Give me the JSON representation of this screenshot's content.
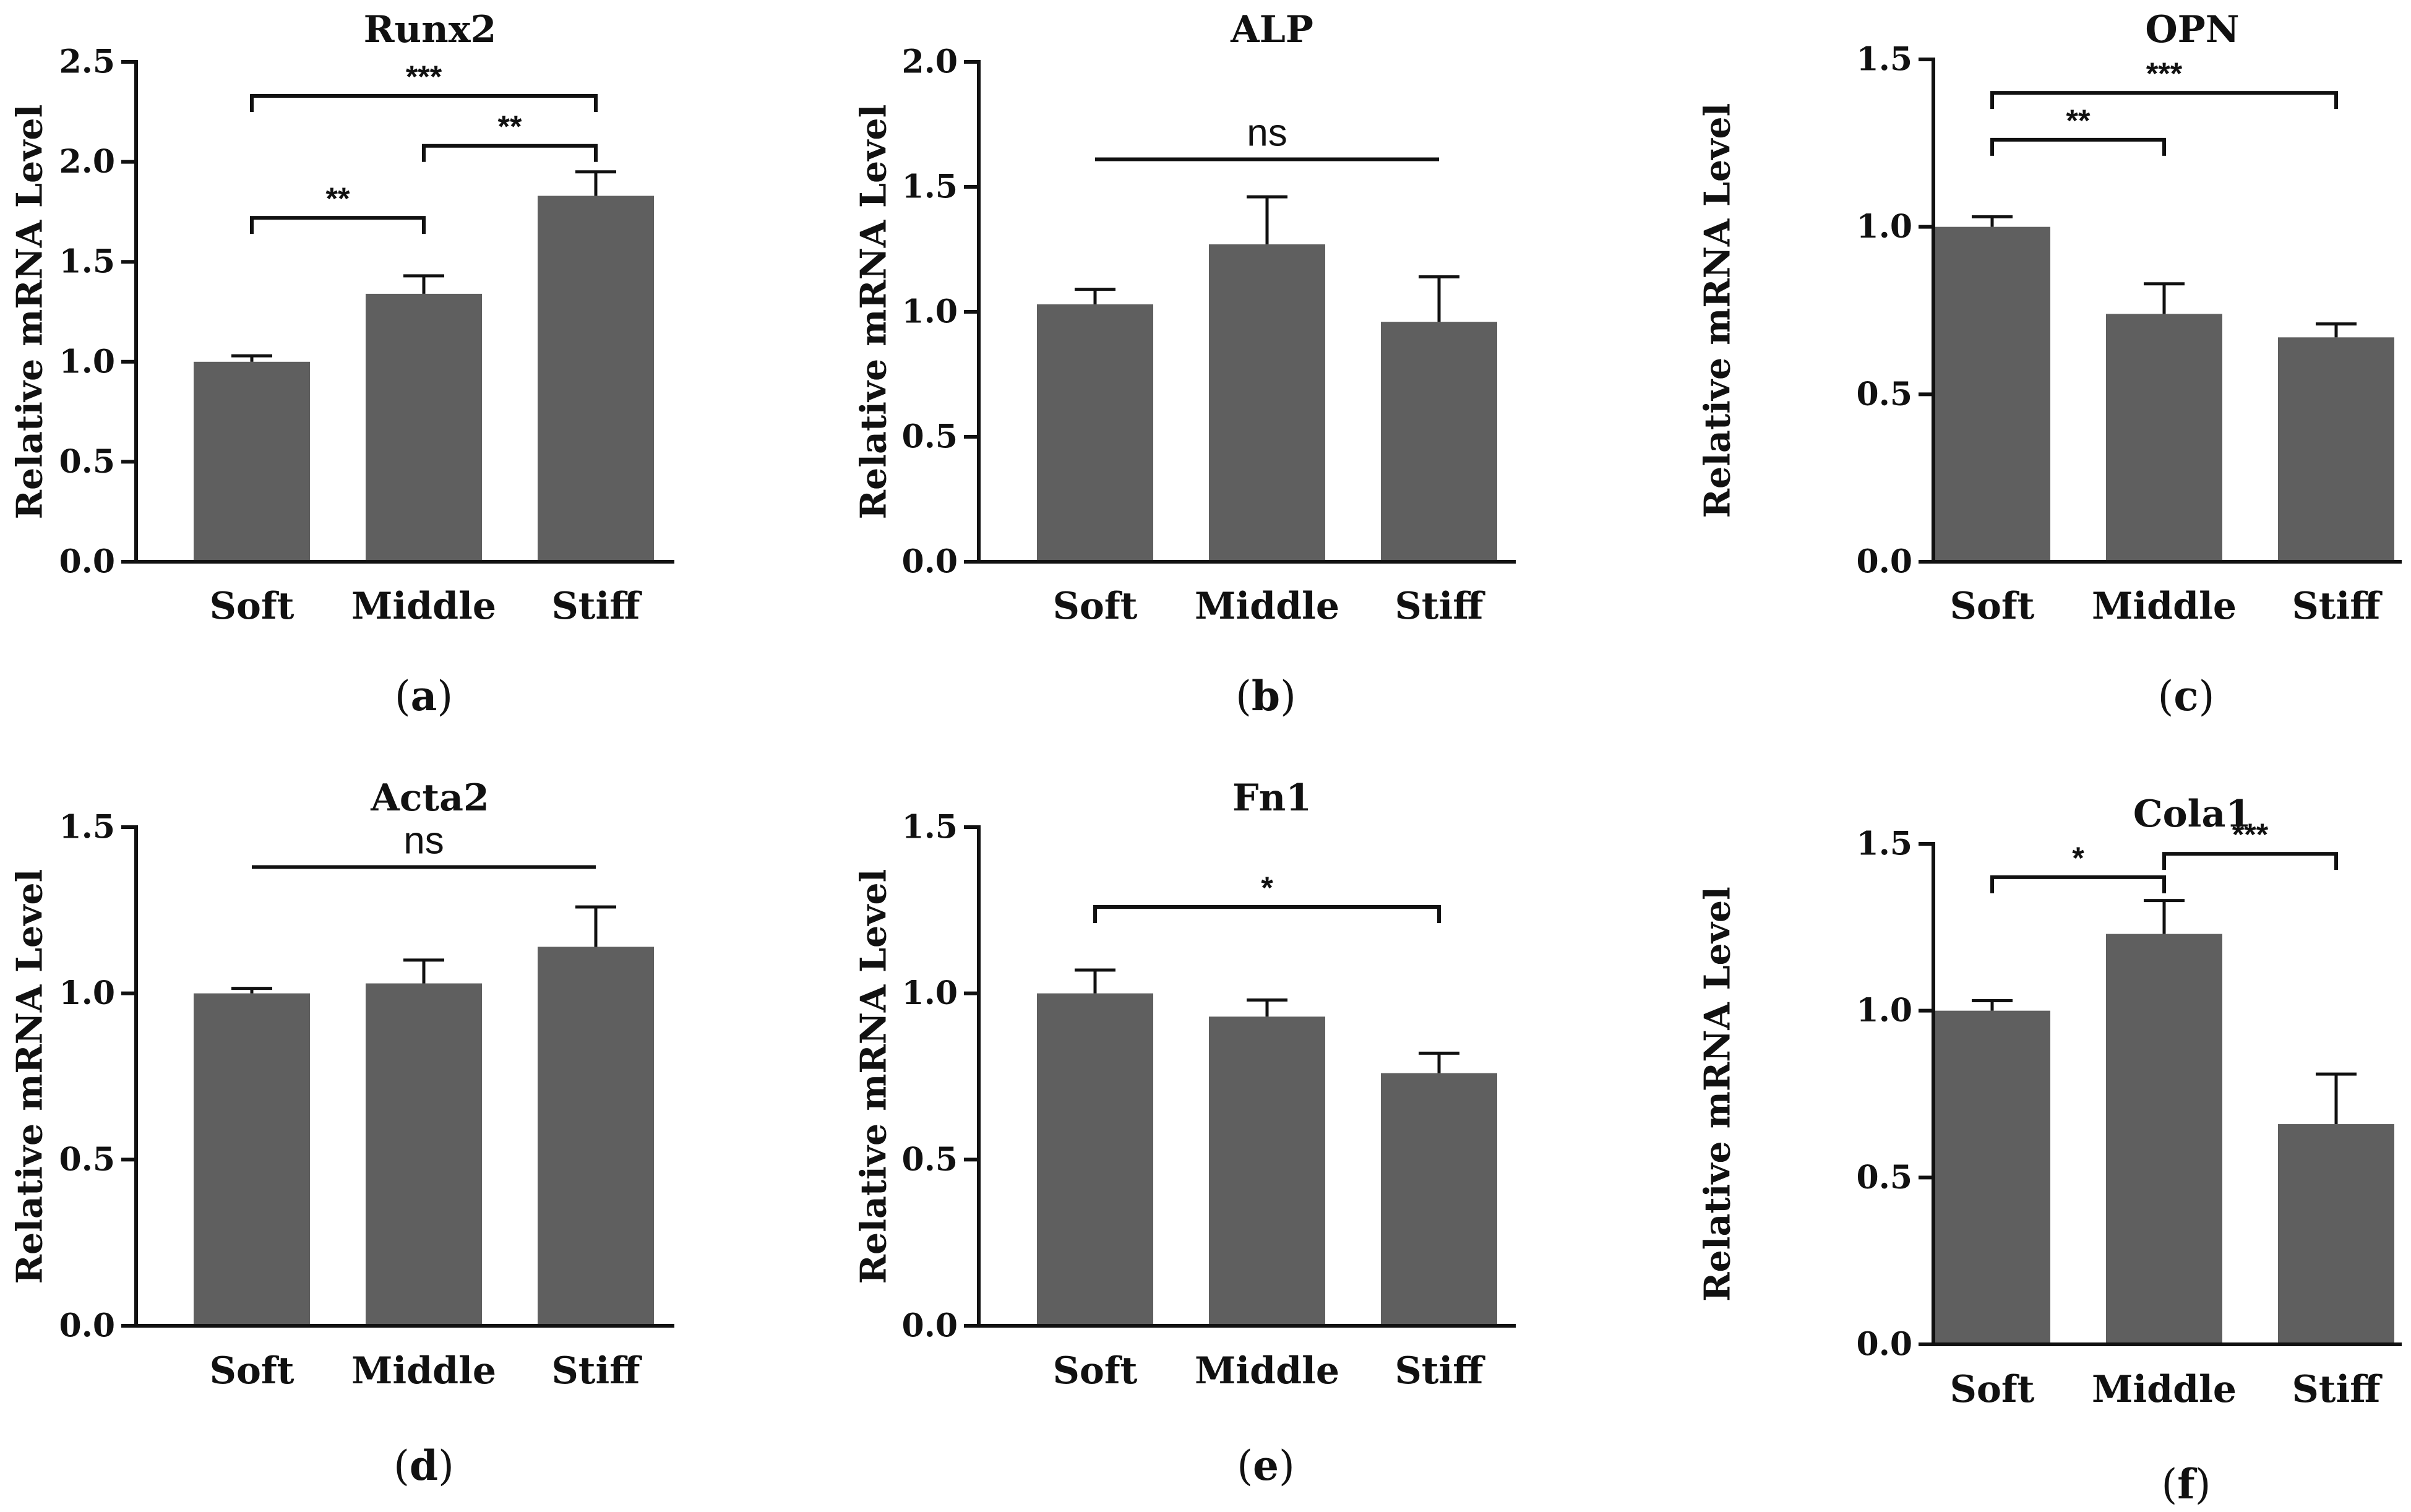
{
  "chart_data": [
    {
      "type": "bar",
      "title": "Runx2",
      "panel_label": "a",
      "ylabel": "Relative mRNA Level",
      "categories": [
        "Soft",
        "Middle",
        "Stiff"
      ],
      "values": [
        1.0,
        1.34,
        1.83
      ],
      "errors": [
        0.03,
        0.09,
        0.12
      ],
      "ylim": [
        0,
        2.5
      ],
      "yticks": [
        0.0,
        0.5,
        1.0,
        1.5,
        2.0,
        2.5
      ],
      "ytick_labels": [
        "0.0",
        "0.5",
        "1.0",
        "1.5",
        "2.0",
        "2.5"
      ],
      "bar_color": "#5f5f5f",
      "significance": [
        {
          "from": 0,
          "to": 2,
          "label": "***",
          "y": 2.33
        },
        {
          "from": 1,
          "to": 2,
          "label": "**",
          "y": 2.08
        },
        {
          "from": 0,
          "to": 1,
          "label": "**",
          "y": 1.72
        }
      ]
    },
    {
      "type": "bar",
      "title": "ALP",
      "panel_label": "b",
      "ylabel": "Relative mRNA Level",
      "categories": [
        "Soft",
        "Middle",
        "Stiff"
      ],
      "values": [
        1.03,
        1.27,
        0.96
      ],
      "errors": [
        0.06,
        0.19,
        0.18
      ],
      "ylim": [
        0,
        2.0
      ],
      "yticks": [
        0.0,
        0.5,
        1.0,
        1.5,
        2.0
      ],
      "ytick_labels": [
        "0.0",
        "0.5",
        "1.0",
        "1.5",
        "2.0"
      ],
      "bar_color": "#5f5f5f",
      "significance": [
        {
          "from": 0,
          "to": 2,
          "label": "ns",
          "y": 1.61,
          "flat": true
        }
      ]
    },
    {
      "type": "bar",
      "title": "OPN",
      "panel_label": "c",
      "ylabel": "Relative mRNA Level",
      "categories": [
        "Soft",
        "Middle",
        "Stiff"
      ],
      "values": [
        1.0,
        0.74,
        0.67
      ],
      "errors": [
        0.03,
        0.09,
        0.04
      ],
      "ylim": [
        0,
        1.5
      ],
      "yticks": [
        0.0,
        0.5,
        1.0,
        1.5
      ],
      "ytick_labels": [
        "0.0",
        "0.5",
        "1.0",
        "1.5"
      ],
      "bar_color": "#5f5f5f",
      "significance": [
        {
          "from": 0,
          "to": 2,
          "label": "***",
          "y": 1.4
        },
        {
          "from": 0,
          "to": 1,
          "label": "**",
          "y": 1.26
        }
      ]
    },
    {
      "type": "bar",
      "title": "Acta2",
      "panel_label": "d",
      "ylabel": "Relative mRNA Level",
      "categories": [
        "Soft",
        "Middle",
        "Stiff"
      ],
      "values": [
        1.0,
        1.03,
        1.14
      ],
      "errors": [
        0.015,
        0.07,
        0.12
      ],
      "ylim": [
        0,
        1.5
      ],
      "yticks": [
        0.0,
        0.5,
        1.0,
        1.5
      ],
      "ytick_labels": [
        "0.0",
        "0.5",
        "1.0",
        "1.5"
      ],
      "bar_color": "#5f5f5f",
      "significance": [
        {
          "from": 0,
          "to": 2,
          "label": "ns",
          "y": 1.38,
          "flat": true
        }
      ]
    },
    {
      "type": "bar",
      "title": "Fn1",
      "panel_label": "e",
      "ylabel": "Relative mRNA Level",
      "categories": [
        "Soft",
        "Middle",
        "Stiff"
      ],
      "values": [
        1.0,
        0.93,
        0.76
      ],
      "errors": [
        0.07,
        0.05,
        0.06
      ],
      "ylim": [
        0,
        1.5
      ],
      "yticks": [
        0.0,
        0.5,
        1.0,
        1.5
      ],
      "ytick_labels": [
        "0.0",
        "0.5",
        "1.0",
        "1.5"
      ],
      "bar_color": "#5f5f5f",
      "significance": [
        {
          "from": 0,
          "to": 2,
          "label": "*",
          "y": 1.26
        }
      ]
    },
    {
      "type": "bar",
      "title": "Cola1",
      "panel_label": "f",
      "ylabel": "Relative mRNA Level",
      "categories": [
        "Soft",
        "Middle",
        "Stiff"
      ],
      "values": [
        1.0,
        1.23,
        0.66
      ],
      "errors": [
        0.03,
        0.1,
        0.15
      ],
      "ylim": [
        0,
        1.5
      ],
      "yticks": [
        0.0,
        0.5,
        1.0,
        1.5
      ],
      "ytick_labels": [
        "0.0",
        "0.5",
        "1.0",
        "1.5"
      ],
      "bar_color": "#5f5f5f",
      "significance": [
        {
          "from": 0,
          "to": 1,
          "label": "*",
          "y": 1.4
        },
        {
          "from": 1,
          "to": 2,
          "label": "***",
          "y": 1.47
        }
      ]
    }
  ]
}
